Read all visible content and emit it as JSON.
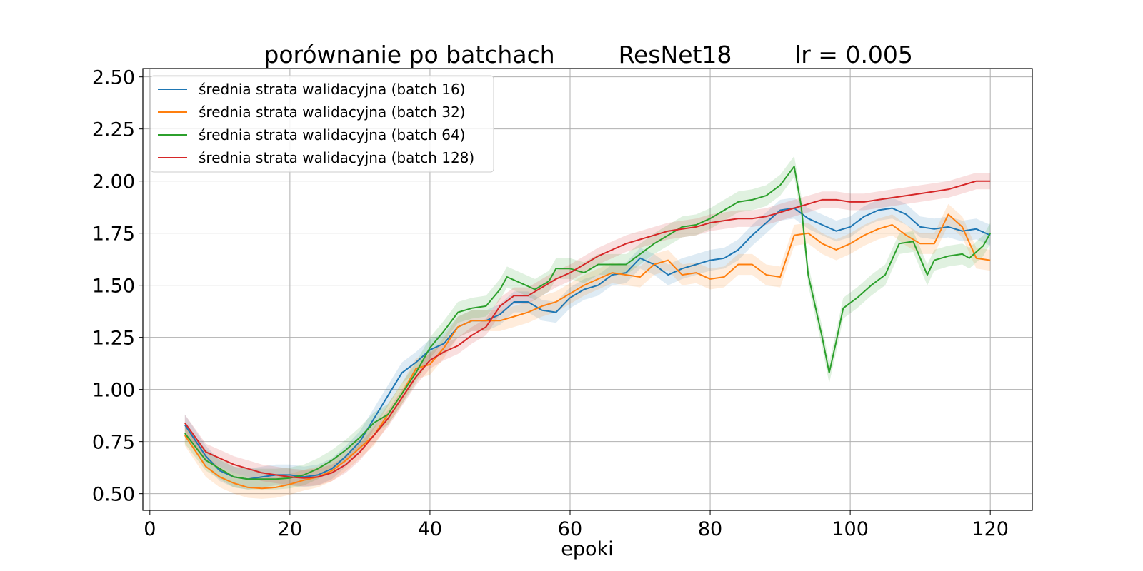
{
  "chart_data": {
    "type": "line",
    "title_parts": [
      "porównanie po batchach",
      "ResNet18",
      "lr = 0.005"
    ],
    "xlabel": "epoki",
    "ylabel": "",
    "xlim": [
      -1,
      126
    ],
    "ylim": [
      0.42,
      2.54
    ],
    "x_ticks": [
      0,
      20,
      40,
      60,
      80,
      100,
      120
    ],
    "y_ticks": [
      0.5,
      0.75,
      1.0,
      1.25,
      1.5,
      1.75,
      2.0,
      2.25,
      2.5
    ],
    "x_tick_labels": [
      "0",
      "20",
      "40",
      "60",
      "80",
      "100",
      "120"
    ],
    "y_tick_labels": [
      "0.50",
      "0.75",
      "1.00",
      "1.25",
      "1.50",
      "1.75",
      "2.00",
      "2.25",
      "2.50"
    ],
    "grid": true,
    "legend_position": "top-left",
    "band_opacity": 0.15,
    "series": [
      {
        "name": "średnia strata walidacyjna (batch 16)",
        "color": "#1f77b4",
        "points": [
          [
            5,
            0.83
          ],
          [
            8,
            0.68
          ],
          [
            10,
            0.61
          ],
          [
            12,
            0.58
          ],
          [
            14,
            0.57
          ],
          [
            16,
            0.58
          ],
          [
            18,
            0.59
          ],
          [
            20,
            0.59
          ],
          [
            22,
            0.58
          ],
          [
            24,
            0.59
          ],
          [
            26,
            0.62
          ],
          [
            28,
            0.68
          ],
          [
            30,
            0.75
          ],
          [
            32,
            0.86
          ],
          [
            34,
            0.97
          ],
          [
            36,
            1.08
          ],
          [
            38,
            1.13
          ],
          [
            40,
            1.19
          ],
          [
            42,
            1.22
          ],
          [
            44,
            1.3
          ],
          [
            46,
            1.33
          ],
          [
            48,
            1.33
          ],
          [
            50,
            1.36
          ],
          [
            52,
            1.42
          ],
          [
            54,
            1.42
          ],
          [
            56,
            1.38
          ],
          [
            58,
            1.37
          ],
          [
            60,
            1.44
          ],
          [
            62,
            1.48
          ],
          [
            64,
            1.5
          ],
          [
            66,
            1.55
          ],
          [
            68,
            1.56
          ],
          [
            70,
            1.63
          ],
          [
            72,
            1.6
          ],
          [
            74,
            1.55
          ],
          [
            76,
            1.58
          ],
          [
            78,
            1.6
          ],
          [
            80,
            1.62
          ],
          [
            82,
            1.63
          ],
          [
            84,
            1.67
          ],
          [
            86,
            1.74
          ],
          [
            88,
            1.8
          ],
          [
            90,
            1.86
          ],
          [
            92,
            1.87
          ],
          [
            94,
            1.82
          ],
          [
            96,
            1.79
          ],
          [
            98,
            1.76
          ],
          [
            100,
            1.78
          ],
          [
            102,
            1.83
          ],
          [
            104,
            1.86
          ],
          [
            106,
            1.87
          ],
          [
            108,
            1.84
          ],
          [
            110,
            1.78
          ],
          [
            112,
            1.77
          ],
          [
            114,
            1.78
          ],
          [
            116,
            1.76
          ],
          [
            118,
            1.77
          ],
          [
            120,
            1.74
          ]
        ],
        "band": 0.05
      },
      {
        "name": "średnia strata walidacyjna (batch 32)",
        "color": "#ff7f0e",
        "points": [
          [
            5,
            0.78
          ],
          [
            8,
            0.63
          ],
          [
            10,
            0.58
          ],
          [
            12,
            0.55
          ],
          [
            14,
            0.53
          ],
          [
            16,
            0.525
          ],
          [
            18,
            0.53
          ],
          [
            20,
            0.545
          ],
          [
            22,
            0.565
          ],
          [
            24,
            0.58
          ],
          [
            26,
            0.61
          ],
          [
            28,
            0.66
          ],
          [
            30,
            0.72
          ],
          [
            32,
            0.78
          ],
          [
            34,
            0.88
          ],
          [
            36,
            0.98
          ],
          [
            38,
            1.1
          ],
          [
            40,
            1.12
          ],
          [
            42,
            1.2
          ],
          [
            44,
            1.3
          ],
          [
            46,
            1.33
          ],
          [
            48,
            1.33
          ],
          [
            50,
            1.33
          ],
          [
            52,
            1.35
          ],
          [
            54,
            1.37
          ],
          [
            56,
            1.4
          ],
          [
            58,
            1.42
          ],
          [
            60,
            1.46
          ],
          [
            62,
            1.5
          ],
          [
            64,
            1.53
          ],
          [
            66,
            1.56
          ],
          [
            68,
            1.55
          ],
          [
            70,
            1.54
          ],
          [
            72,
            1.6
          ],
          [
            74,
            1.62
          ],
          [
            76,
            1.55
          ],
          [
            78,
            1.56
          ],
          [
            80,
            1.53
          ],
          [
            82,
            1.54
          ],
          [
            84,
            1.6
          ],
          [
            86,
            1.6
          ],
          [
            88,
            1.55
          ],
          [
            90,
            1.54
          ],
          [
            92,
            1.74
          ],
          [
            94,
            1.75
          ],
          [
            96,
            1.7
          ],
          [
            98,
            1.67
          ],
          [
            100,
            1.7
          ],
          [
            102,
            1.74
          ],
          [
            104,
            1.77
          ],
          [
            106,
            1.79
          ],
          [
            108,
            1.74
          ],
          [
            110,
            1.7
          ],
          [
            112,
            1.7
          ],
          [
            114,
            1.84
          ],
          [
            116,
            1.78
          ],
          [
            118,
            1.63
          ],
          [
            120,
            1.62
          ]
        ],
        "band": 0.05
      },
      {
        "name": "średnia strata walidacyjna (batch 64)",
        "color": "#2ca02c",
        "points": [
          [
            5,
            0.79
          ],
          [
            8,
            0.66
          ],
          [
            10,
            0.62
          ],
          [
            12,
            0.58
          ],
          [
            14,
            0.57
          ],
          [
            16,
            0.57
          ],
          [
            18,
            0.57
          ],
          [
            20,
            0.575
          ],
          [
            22,
            0.59
          ],
          [
            24,
            0.62
          ],
          [
            26,
            0.66
          ],
          [
            28,
            0.71
          ],
          [
            30,
            0.77
          ],
          [
            32,
            0.84
          ],
          [
            34,
            0.88
          ],
          [
            36,
            0.98
          ],
          [
            38,
            1.08
          ],
          [
            40,
            1.2
          ],
          [
            42,
            1.28
          ],
          [
            44,
            1.37
          ],
          [
            46,
            1.39
          ],
          [
            48,
            1.4
          ],
          [
            50,
            1.48
          ],
          [
            51,
            1.54
          ],
          [
            53,
            1.51
          ],
          [
            55,
            1.48
          ],
          [
            57,
            1.52
          ],
          [
            58,
            1.58
          ],
          [
            60,
            1.58
          ],
          [
            62,
            1.56
          ],
          [
            64,
            1.6
          ],
          [
            66,
            1.6
          ],
          [
            68,
            1.6
          ],
          [
            70,
            1.65
          ],
          [
            72,
            1.7
          ],
          [
            74,
            1.74
          ],
          [
            76,
            1.78
          ],
          [
            78,
            1.79
          ],
          [
            80,
            1.82
          ],
          [
            82,
            1.86
          ],
          [
            84,
            1.9
          ],
          [
            86,
            1.91
          ],
          [
            88,
            1.93
          ],
          [
            90,
            1.98
          ],
          [
            92,
            2.07
          ],
          [
            93,
            1.88
          ],
          [
            94,
            1.55
          ],
          [
            96,
            1.25
          ],
          [
            97,
            1.08
          ],
          [
            98,
            1.23
          ],
          [
            99,
            1.39
          ],
          [
            101,
            1.44
          ],
          [
            103,
            1.5
          ],
          [
            105,
            1.55
          ],
          [
            107,
            1.7
          ],
          [
            109,
            1.71
          ],
          [
            111,
            1.55
          ],
          [
            112,
            1.62
          ],
          [
            114,
            1.64
          ],
          [
            116,
            1.65
          ],
          [
            117,
            1.63
          ],
          [
            119,
            1.69
          ],
          [
            120,
            1.75
          ]
        ],
        "band": 0.05
      },
      {
        "name": "średnia strata walidacyjna (batch 128)",
        "color": "#d62728",
        "points": [
          [
            5,
            0.84
          ],
          [
            8,
            0.7
          ],
          [
            10,
            0.67
          ],
          [
            12,
            0.64
          ],
          [
            14,
            0.62
          ],
          [
            16,
            0.6
          ],
          [
            18,
            0.59
          ],
          [
            20,
            0.58
          ],
          [
            22,
            0.575
          ],
          [
            24,
            0.58
          ],
          [
            26,
            0.6
          ],
          [
            28,
            0.64
          ],
          [
            30,
            0.7
          ],
          [
            32,
            0.78
          ],
          [
            34,
            0.86
          ],
          [
            36,
            0.96
          ],
          [
            38,
            1.06
          ],
          [
            40,
            1.14
          ],
          [
            42,
            1.18
          ],
          [
            44,
            1.21
          ],
          [
            46,
            1.26
          ],
          [
            48,
            1.3
          ],
          [
            50,
            1.4
          ],
          [
            52,
            1.45
          ],
          [
            54,
            1.45
          ],
          [
            56,
            1.49
          ],
          [
            58,
            1.53
          ],
          [
            60,
            1.56
          ],
          [
            62,
            1.6
          ],
          [
            64,
            1.64
          ],
          [
            66,
            1.67
          ],
          [
            68,
            1.7
          ],
          [
            70,
            1.72
          ],
          [
            72,
            1.74
          ],
          [
            74,
            1.76
          ],
          [
            76,
            1.77
          ],
          [
            78,
            1.78
          ],
          [
            80,
            1.8
          ],
          [
            82,
            1.81
          ],
          [
            84,
            1.82
          ],
          [
            86,
            1.82
          ],
          [
            88,
            1.83
          ],
          [
            90,
            1.85
          ],
          [
            92,
            1.87
          ],
          [
            94,
            1.89
          ],
          [
            96,
            1.91
          ],
          [
            98,
            1.91
          ],
          [
            100,
            1.9
          ],
          [
            102,
            1.9
          ],
          [
            104,
            1.91
          ],
          [
            106,
            1.92
          ],
          [
            108,
            1.93
          ],
          [
            110,
            1.94
          ],
          [
            112,
            1.95
          ],
          [
            114,
            1.96
          ],
          [
            116,
            1.98
          ],
          [
            118,
            2.0
          ],
          [
            120,
            2.0
          ]
        ],
        "band": 0.04
      }
    ]
  }
}
